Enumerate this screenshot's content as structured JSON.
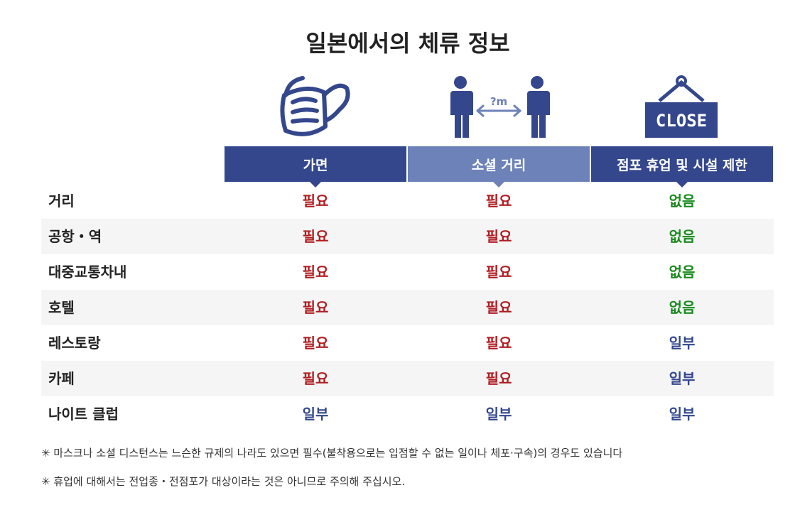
{
  "title": "일본에서의 체류 정보",
  "icons": {
    "mask": "face-mask-icon",
    "distance": "social-distance-icon",
    "close": "close-sign-icon",
    "distance_label": "?m",
    "close_label": "CLOSE"
  },
  "columns": [
    "가면",
    "소셜 거리",
    "점포 휴업 및 시설 제한"
  ],
  "rows": [
    {
      "label": "거리",
      "values": [
        "필요",
        "필요",
        "없음"
      ]
    },
    {
      "label": "공항・역",
      "values": [
        "필요",
        "필요",
        "없음"
      ]
    },
    {
      "label": "대중교통차내",
      "values": [
        "필요",
        "필요",
        "없음"
      ]
    },
    {
      "label": "호텔",
      "values": [
        "필요",
        "필요",
        "없음"
      ]
    },
    {
      "label": "레스토랑",
      "values": [
        "필요",
        "필요",
        "일부"
      ]
    },
    {
      "label": "카페",
      "values": [
        "필요",
        "필요",
        "일부"
      ]
    },
    {
      "label": "나이트 클럽",
      "values": [
        "일부",
        "일부",
        "일부"
      ]
    }
  ],
  "status_colors": {
    "필요": "#b01e23",
    "없음": "#1a8a1f",
    "일부": "#34478d"
  },
  "notes": [
    "✳ 마스크나 소셜 디스턴스는 느슨한 규제의 나라도 있으면 필수(불착용으로는 입점할 수 없는 일이나 체포·구속)의 경우도 있습니다",
    "✳ 휴업에 대해서는 전업종・전점포가 대상이라는 것은 아니므로 주의해 주십시오."
  ]
}
